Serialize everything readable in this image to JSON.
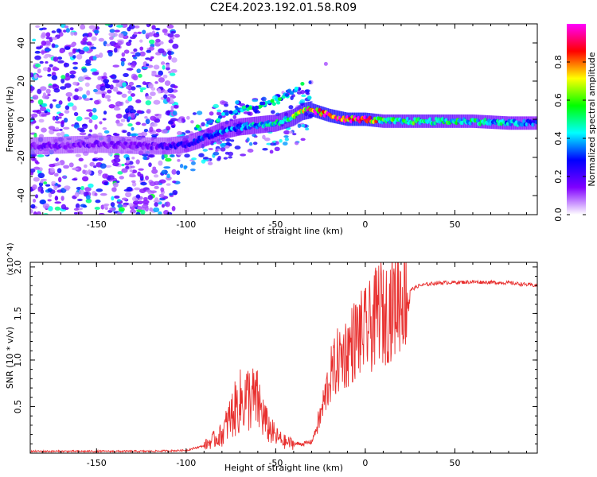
{
  "title": "C2E4.2023.192.01.58.R09",
  "colorbar": {
    "label": "Normalized spectral amplitude",
    "ticks": [
      "0.0",
      "0.2",
      "0.4",
      "0.6",
      "0.8"
    ],
    "range": [
      0,
      1
    ],
    "colors": [
      "#ffffff",
      "#8000ff",
      "#0000ff",
      "#00ffff",
      "#00ff00",
      "#ffff00",
      "#ff0000",
      "#ff00ff"
    ]
  },
  "chart_data": [
    {
      "type": "heatmap",
      "title": "",
      "xlabel": "Height of straight line (km)",
      "ylabel": "Frequency (Hz)",
      "xlim": [
        -187,
        96
      ],
      "ylim": [
        -50,
        50
      ],
      "xticks": [
        "-150",
        "-100",
        "-50",
        "0",
        "50"
      ],
      "yticks": [
        "-40",
        "-20",
        "0",
        "20",
        "40"
      ],
      "ridge": {
        "x": [
          -187,
          -150,
          -120,
          -110,
          -100,
          -90,
          -80,
          -70,
          -60,
          -50,
          -40,
          -35,
          -30,
          -20,
          -10,
          0,
          10,
          20,
          40,
          60,
          80,
          96
        ],
        "freq": [
          -14,
          -13,
          -14,
          -14,
          -13,
          -10,
          -6,
          -4,
          -3,
          -2,
          1,
          4,
          5,
          2,
          0,
          0,
          -1,
          -1,
          -1,
          -1,
          -2,
          -2
        ],
        "amplitude": [
          0.15,
          0.15,
          0.15,
          0.2,
          0.25,
          0.3,
          0.35,
          0.35,
          0.4,
          0.45,
          0.55,
          0.7,
          0.8,
          0.85,
          0.9,
          0.9,
          0.5,
          0.5,
          0.5,
          0.45,
          0.4,
          0.3
        ]
      }
    },
    {
      "type": "line",
      "title": "",
      "xlabel": "Height of straight line (km)",
      "ylabel": "SNR (10 * v/v)",
      "yscale_label": "(x10^4)",
      "xlim": [
        -187,
        96
      ],
      "ylim": [
        0,
        2.05
      ],
      "xticks": [
        "-150",
        "-100",
        "-50",
        "0",
        "50"
      ],
      "yticks": [
        "0.5",
        "1.0",
        "1.5",
        "2.0"
      ],
      "series": [
        {
          "values_x": [
            -187,
            -150,
            -120,
            -100,
            -90,
            -80,
            -75,
            -70,
            -65,
            -60,
            -55,
            -50,
            -45,
            -40,
            -35,
            -30,
            -25,
            -20,
            -15,
            -10,
            -5,
            0,
            5,
            8,
            10,
            15,
            20,
            25,
            30,
            40,
            60,
            80,
            96
          ],
          "values_y": [
            0.02,
            0.02,
            0.02,
            0.03,
            0.08,
            0.2,
            0.4,
            0.55,
            0.6,
            0.55,
            0.3,
            0.18,
            0.12,
            0.1,
            0.1,
            0.12,
            0.4,
            0.8,
            1.0,
            1.1,
            1.25,
            1.3,
            1.4,
            1.6,
            1.45,
            1.6,
            1.7,
            1.75,
            1.8,
            1.83,
            1.84,
            1.83,
            1.8
          ],
          "color": "#e8302f"
        }
      ]
    }
  ]
}
